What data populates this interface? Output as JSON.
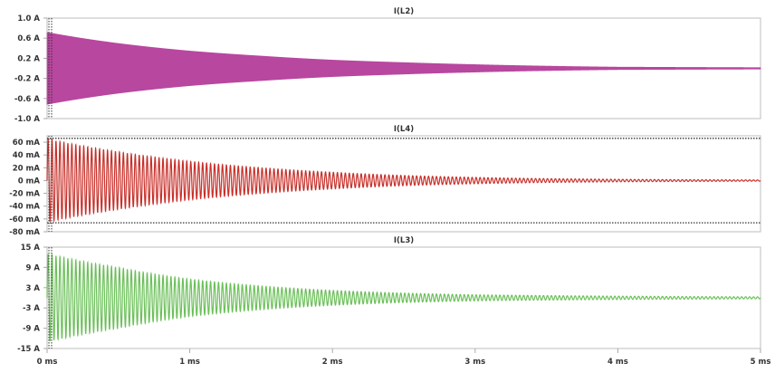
{
  "chart_data": [
    {
      "type": "line",
      "title": "I(L2)",
      "yticks": [
        "1.0 A",
        "0.6 A",
        "0.2 A",
        "-0.2 A",
        "-0.6 A",
        "-1.0 A"
      ],
      "ylim": [
        -1.0,
        1.0
      ],
      "color": "#b8479f",
      "fill": "#b8479f",
      "unit": "A",
      "envelope": {
        "t_ms": [
          0,
          0.5,
          1,
          1.5,
          2,
          2.5,
          3,
          3.5,
          4,
          5
        ],
        "amplitude": [
          0.72,
          0.5,
          0.35,
          0.25,
          0.17,
          0.12,
          0.08,
          0.05,
          0.03,
          0.02
        ]
      },
      "oscillation_khz": 400
    },
    {
      "type": "line",
      "title": "I(L4)",
      "yticks": [
        "60 mA",
        "40 mA",
        "20 mA",
        "0 mA",
        "-20 mA",
        "-40 mA",
        "-60 mA",
        "-80 mA"
      ],
      "ylim": [
        -80,
        70
      ],
      "color": "#c8302a",
      "unit": "mA",
      "envelope": {
        "t_ms": [
          0,
          0.5,
          1,
          1.5,
          2,
          2.5,
          3,
          3.5,
          4,
          5
        ],
        "amplitude": [
          65,
          45,
          30,
          20,
          13,
          8,
          5,
          3,
          2,
          1
        ]
      },
      "oscillation_khz": 36,
      "cursor_levels": [
        66,
        -66
      ]
    },
    {
      "type": "line",
      "title": "I(L3)",
      "yticks": [
        "15 A",
        "9 A",
        "3 A",
        "-3 A",
        "-9 A",
        "-15 A"
      ],
      "ylim": [
        -15,
        15
      ],
      "color": "#6cc05a",
      "unit": "A",
      "envelope": {
        "t_ms": [
          0,
          0.5,
          1,
          1.5,
          2,
          2.5,
          3,
          4,
          5
        ],
        "amplitude": [
          13,
          9,
          5.5,
          3.5,
          2.2,
          1.4,
          0.9,
          0.5,
          0.3
        ]
      },
      "oscillation_khz": 36
    }
  ],
  "xaxis": {
    "ticks": [
      "0 ms",
      "1 ms",
      "2 ms",
      "3 ms",
      "4 ms",
      "5 ms"
    ],
    "xlim_ms": [
      0,
      5
    ]
  }
}
